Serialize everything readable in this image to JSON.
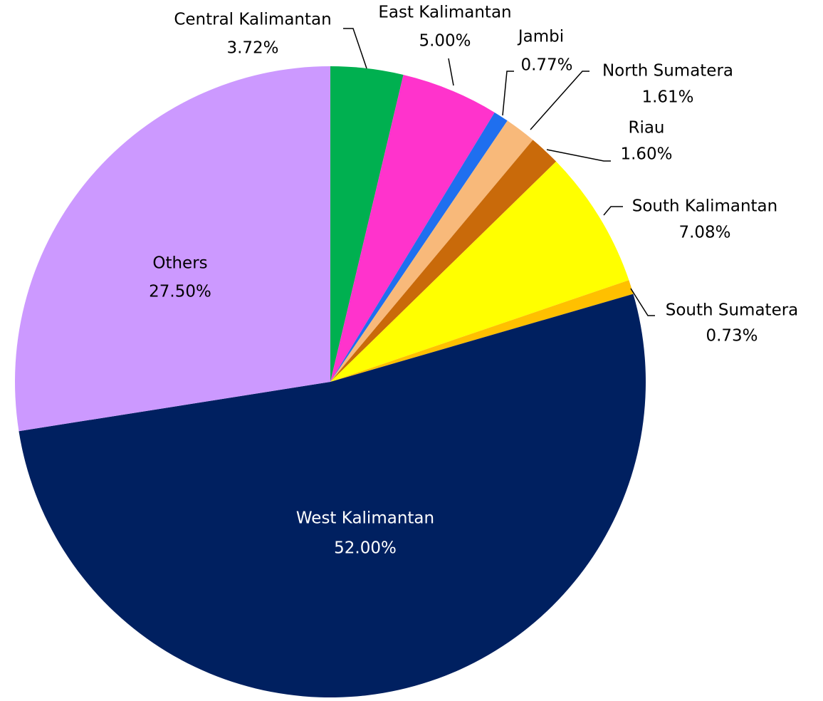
{
  "chart_data": {
    "type": "pie",
    "categories": [
      "Central Kalimantan",
      "East Kalimantan",
      "Jambi",
      "North Sumatera",
      "Riau",
      "South Kalimantan",
      "South Sumatera",
      "West Kalimantan",
      "Others"
    ],
    "values": [
      3.72,
      5.0,
      0.77,
      1.61,
      1.6,
      7.08,
      0.73,
      52.0,
      27.5
    ],
    "value_labels": [
      "3.72%",
      "5.00%",
      "0.77%",
      "1.61%",
      "1.60%",
      "7.08%",
      "0.73%",
      "52.00%",
      "27.50%"
    ],
    "colors": [
      "#00b050",
      "#ff33cc",
      "#1f6fef",
      "#f8b97a",
      "#c96a0a",
      "#ffff00",
      "#ffc000",
      "#002060",
      "#cc99ff"
    ]
  }
}
